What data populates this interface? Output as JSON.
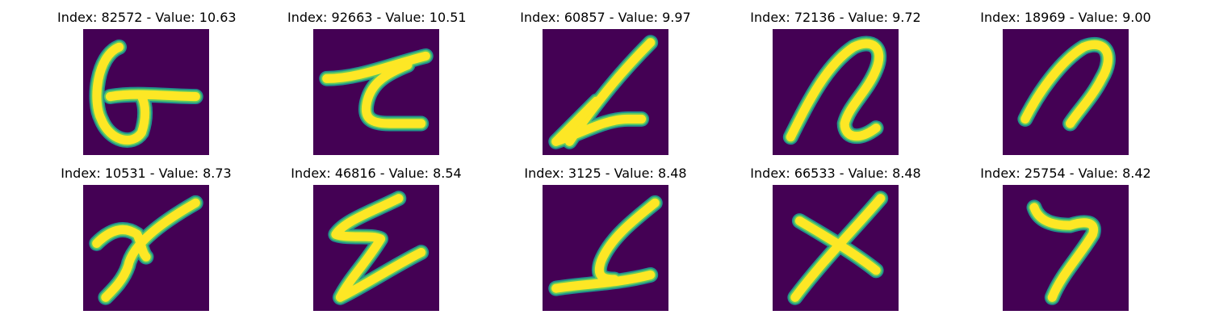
{
  "colors": {
    "background": "#440154",
    "stroke_inner": "#fde725",
    "stroke_mid": "#5ec962",
    "stroke_edge": "#21918c"
  },
  "panels": [
    {
      "title": "Index: 82572 - Value: 10.63",
      "index": 82572,
      "value": 10.63,
      "glyph": "stroke-g"
    },
    {
      "title": "Index: 92663 - Value: 10.51",
      "index": 92663,
      "value": 10.51,
      "glyph": "stroke-z-bar"
    },
    {
      "title": "Index: 60857 - Value: 9.97",
      "index": 60857,
      "value": 9.97,
      "glyph": "stroke-slanted-l"
    },
    {
      "title": "Index: 72136 - Value: 9.72",
      "index": 72136,
      "value": 9.72,
      "glyph": "stroke-n-curl"
    },
    {
      "title": "Index: 18969 - Value: 9.00",
      "index": 18969,
      "value": 9.0,
      "glyph": "stroke-n-arch"
    },
    {
      "title": "Index: 10531 - Value: 8.73",
      "index": 10531,
      "value": 8.73,
      "glyph": "stroke-y"
    },
    {
      "title": "Index: 46816 - Value: 8.54",
      "index": 46816,
      "value": 8.54,
      "glyph": "stroke-zigzag"
    },
    {
      "title": "Index: 3125 - Value: 8.48",
      "index": 3125,
      "value": 8.48,
      "glyph": "stroke-s-hook"
    },
    {
      "title": "Index: 66533 - Value: 8.48",
      "index": 66533,
      "value": 8.48,
      "glyph": "stroke-x"
    },
    {
      "title": "Index: 25754 - Value: 8.42",
      "index": 25754,
      "value": 8.42,
      "glyph": "stroke-seven"
    }
  ]
}
